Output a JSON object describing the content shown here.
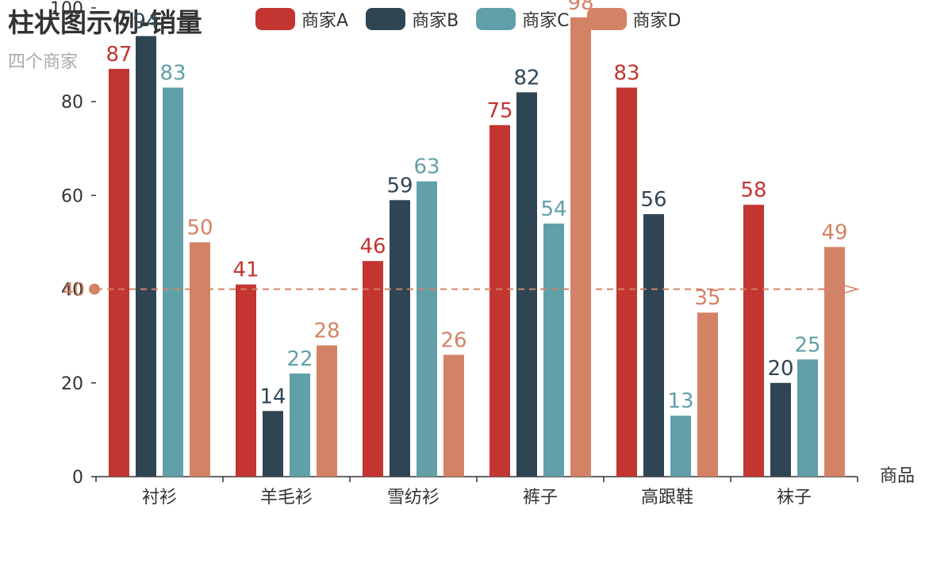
{
  "chart_data": {
    "type": "bar",
    "title": "柱状图示例-销量",
    "subtitle": "四个商家",
    "xlabel": "商品",
    "ylabel": "",
    "categories": [
      "衬衫",
      "羊毛衫",
      "雪纺衫",
      "裤子",
      "高跟鞋",
      "袜子"
    ],
    "series": [
      {
        "name": "商家A",
        "color": "#c23531",
        "values": [
          87,
          41,
          46,
          75,
          83,
          58
        ]
      },
      {
        "name": "商家B",
        "color": "#2f4554",
        "values": [
          94,
          14,
          59,
          82,
          56,
          20
        ]
      },
      {
        "name": "商家C",
        "color": "#61a0a8",
        "values": [
          83,
          22,
          63,
          54,
          13,
          25
        ]
      },
      {
        "name": "商家D",
        "color": "#d48265",
        "values": [
          50,
          28,
          26,
          98,
          35,
          49
        ]
      }
    ],
    "ylim": [
      0,
      100
    ],
    "yticks": [
      0,
      20,
      40,
      60,
      80,
      100
    ],
    "markline": {
      "value": 40,
      "label": "40",
      "color": "#d48265"
    },
    "grid": false,
    "legend_position": "top"
  }
}
